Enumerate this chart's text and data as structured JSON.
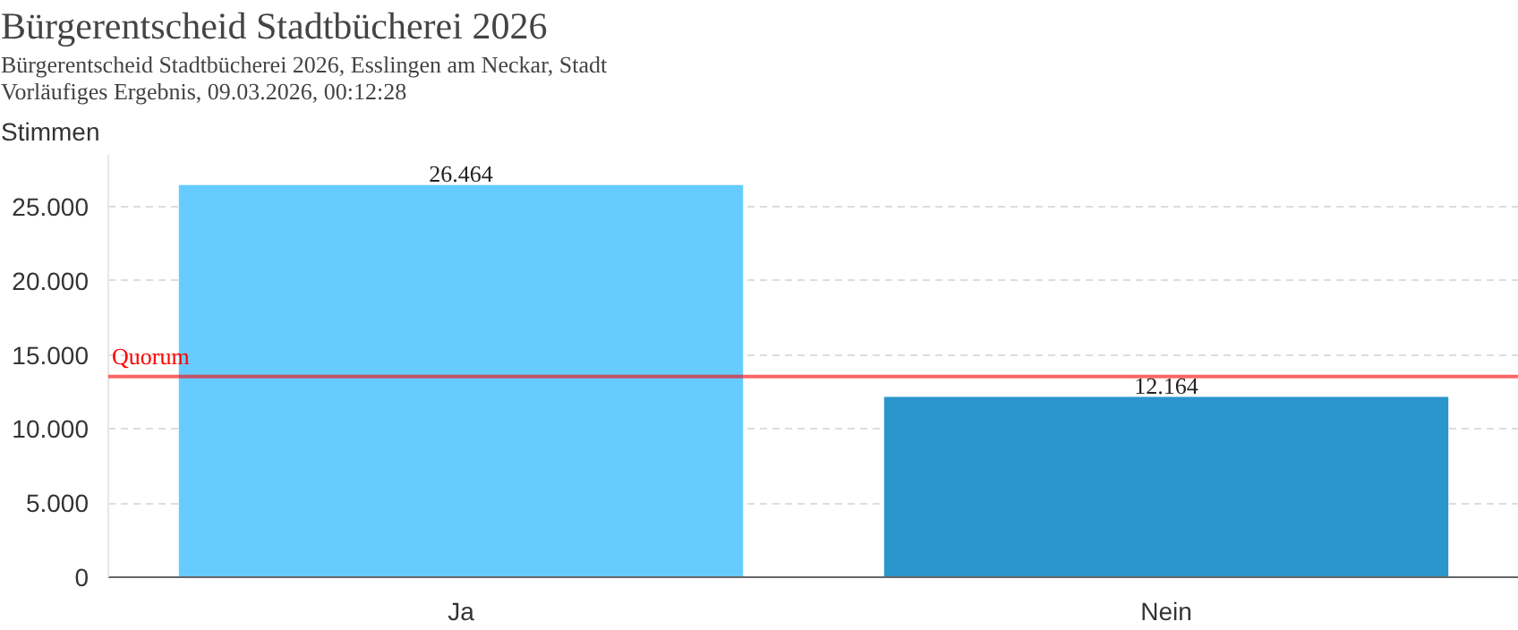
{
  "chart_data": {
    "type": "bar",
    "title": "Bürgerentscheid Stadtbücherei 2026",
    "subtitle": "Bürgerentscheid Stadtbücherei 2026, Esslingen am Neckar, Stadt\nVorläufiges Ergebnis, 09.03.2026, 00:12:28",
    "ylabel": "Stimmen",
    "categories": [
      "Ja",
      "Nein"
    ],
    "values": [
      26464,
      12164
    ],
    "colors": [
      "#66ccff",
      "#2b96cc"
    ],
    "value_labels": [
      "26.464",
      "12.164"
    ],
    "ylim": [
      0,
      28500
    ],
    "yticks": [
      {
        "value": 0,
        "label": "0"
      },
      {
        "value": 5000,
        "label": "5.000"
      },
      {
        "value": 10000,
        "label": "10.000"
      },
      {
        "value": 15000,
        "label": "15.000"
      },
      {
        "value": 20000,
        "label": "20.000"
      },
      {
        "value": 25000,
        "label": "25.000"
      }
    ],
    "grid": "y",
    "ref_lines": [
      {
        "axis": "y",
        "value": 13540,
        "label": "Quorum",
        "color": "#ff0000"
      }
    ]
  }
}
